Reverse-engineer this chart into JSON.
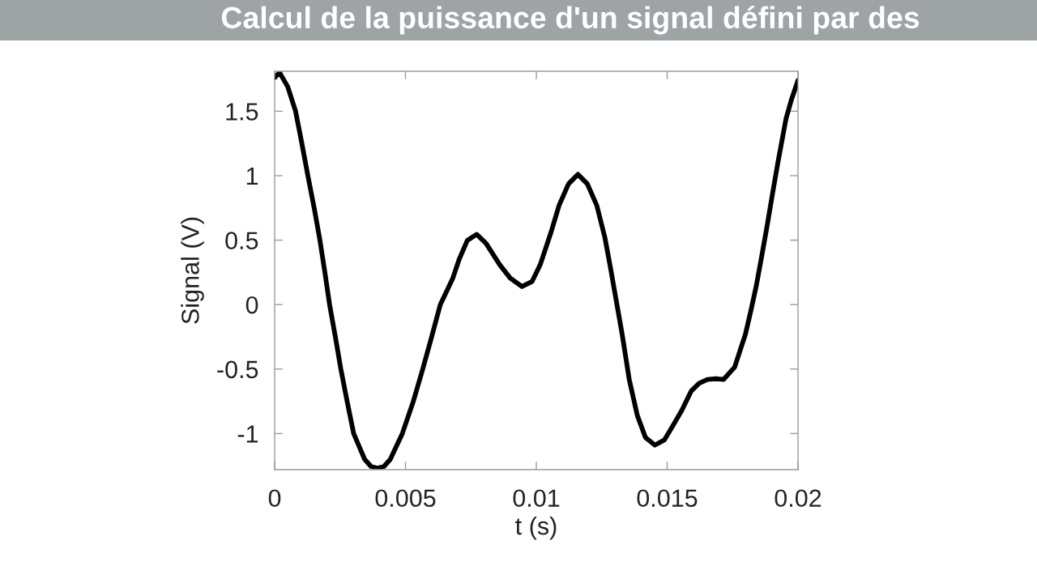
{
  "chart_data": {
    "type": "line",
    "title": "Calcul de la puissance d'un signal défini par des",
    "xlabel": "t (s)",
    "ylabel": "Signal (V)",
    "x": [
      0,
      0.00019,
      0.0005,
      0.0008,
      0.00104,
      0.00127,
      0.00151,
      0.00173,
      0.00192,
      0.0021,
      0.00232,
      0.00253,
      0.00277,
      0.00302,
      0.00323,
      0.00344,
      0.00368,
      0.00393,
      0.00418,
      0.00442,
      0.00465,
      0.00488,
      0.0053,
      0.00566,
      0.006,
      0.00633,
      0.0068,
      0.00705,
      0.00736,
      0.00772,
      0.00808,
      0.0086,
      0.009,
      0.00945,
      0.00984,
      0.01015,
      0.01056,
      0.01087,
      0.01123,
      0.01159,
      0.01195,
      0.01231,
      0.01262,
      0.01283,
      0.01328,
      0.01355,
      0.01386,
      0.01417,
      0.01453,
      0.01489,
      0.0152,
      0.01556,
      0.01592,
      0.01622,
      0.01654,
      0.01685,
      0.01716,
      0.01758,
      0.01778,
      0.01799,
      0.0182,
      0.0184,
      0.01861,
      0.01881,
      0.01902,
      0.01923,
      0.01954,
      0.01974,
      0.02
    ],
    "series": [
      {
        "color": "#000000",
        "values": [
          1.76,
          1.8,
          1.69,
          1.5,
          1.25,
          1.0,
          0.75,
          0.5,
          0.25,
          0.0,
          -0.25,
          -0.5,
          -0.75,
          -1.0,
          -1.1,
          -1.2,
          -1.255,
          -1.27,
          -1.255,
          -1.2,
          -1.1,
          -1.0,
          -0.75,
          -0.5,
          -0.25,
          0.0,
          0.2,
          0.35,
          0.497,
          0.545,
          0.475,
          0.31,
          0.206,
          0.14,
          0.18,
          0.31,
          0.56,
          0.77,
          0.936,
          1.01,
          0.936,
          0.77,
          0.52,
          0.29,
          -0.23,
          -0.58,
          -0.86,
          -1.03,
          -1.09,
          -1.05,
          -0.945,
          -0.82,
          -0.67,
          -0.61,
          -0.58,
          -0.575,
          -0.58,
          -0.485,
          -0.36,
          -0.23,
          -0.046,
          0.14,
          0.372,
          0.6,
          0.853,
          1.1,
          1.44,
          1.584,
          1.74
        ]
      }
    ],
    "xlim": [
      0,
      0.02
    ],
    "ylim": [
      -1.28,
      1.81
    ],
    "xticks": [
      0,
      0.005,
      0.01,
      0.015,
      0.02
    ],
    "yticks": [
      -1,
      -0.5,
      0,
      0.5,
      1,
      1.5
    ],
    "line_style": "solid"
  }
}
